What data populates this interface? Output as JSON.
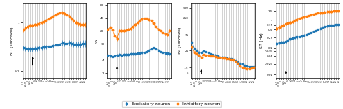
{
  "chart_data": [
    {
      "type": "line",
      "ylabel": "BD (seconds)",
      "log": "y",
      "grid": "x",
      "legend": "lower center",
      "categories": [
        "-0.5",
        "-0.25",
        "0",
        "0.25",
        "0.5",
        "1",
        "2",
        "3",
        "4",
        "5",
        "6",
        "7",
        "8",
        "9",
        "10",
        "11",
        "12",
        "13",
        "14",
        "15",
        "16",
        "17",
        "18",
        "19",
        "20",
        "21",
        "22",
        "23"
      ],
      "ylim": [
        0.07,
        2.5
      ],
      "yticks": [
        0.1,
        1
      ],
      "series": [
        {
          "name": "Excitatory neuron",
          "marker": "square",
          "line_style": "solid",
          "values": [
            0.3,
            0.29,
            0.28,
            0.28,
            0.28,
            0.29,
            0.29,
            0.3,
            0.3,
            0.31,
            0.31,
            0.32,
            0.32,
            0.33,
            0.34,
            0.35,
            0.36,
            0.38,
            0.37,
            0.37,
            0.38,
            0.37,
            0.36,
            0.36,
            0.36,
            0.36,
            0.37,
            0.37
          ],
          "errors": [
            0.03,
            0.03,
            0.03,
            0.03,
            0.03,
            0.03,
            0.03,
            0.03,
            0.03,
            0.03,
            0.03,
            0.03,
            0.03,
            0.03,
            0.03,
            0.04,
            0.04,
            0.05,
            0.05,
            0.05,
            0.05,
            0.05,
            0.05,
            0.05,
            0.05,
            0.06,
            0.06,
            0.06
          ]
        },
        {
          "name": "Inhibitory neuron",
          "marker": "circle",
          "line_style": "solid",
          "values": [
            0.7,
            0.78,
            0.82,
            0.88,
            0.88,
            0.9,
            0.92,
            0.95,
            1.0,
            1.05,
            1.1,
            1.18,
            1.25,
            1.35,
            1.45,
            1.52,
            1.58,
            1.6,
            1.55,
            1.45,
            1.35,
            1.2,
            1.1,
            1.0,
            0.95,
            0.92,
            0.92,
            0.9
          ],
          "errors": [
            0.07,
            0.07,
            0.07,
            0.07,
            0.07,
            0.07,
            0.07,
            0.07,
            0.07,
            0.08,
            0.08,
            0.09,
            0.09,
            0.1,
            0.11,
            0.12,
            0.13,
            0.14,
            0.13,
            0.12,
            0.11,
            0.1,
            0.09,
            0.09,
            0.09,
            0.09,
            0.09,
            0.09
          ]
        }
      ],
      "annotations": [
        {
          "x": "0.5",
          "y": 0.12,
          "y_end": 0.216
        }
      ]
    },
    {
      "type": "line",
      "ylabel": "SN",
      "log": "y",
      "grid": "x",
      "categories": [
        "-0.5",
        "-0.25",
        "0",
        "0.25",
        "0.5",
        "1",
        "2",
        "3",
        "4",
        "5",
        "6",
        "7",
        "8",
        "9",
        "10",
        "11",
        "12",
        "13",
        "14",
        "15",
        "16",
        "17",
        "18",
        "19",
        "20",
        "21",
        "22",
        "23"
      ],
      "ylim": [
        1.5,
        90
      ],
      "yticks": [
        2,
        4,
        10,
        20,
        40,
        80
      ],
      "series": [
        {
          "name": "Excitatory neuron",
          "marker": "square",
          "line_style": "solid",
          "values": [
            5.3,
            5.2,
            5.0,
            5.1,
            5.3,
            5.5,
            5.4,
            5.5,
            5.5,
            5.6,
            5.7,
            5.8,
            5.8,
            5.9,
            6.0,
            6.1,
            6.2,
            6.5,
            7.0,
            7.5,
            8.0,
            7.5,
            7.0,
            6.5,
            6.2,
            6.0,
            5.9,
            5.8
          ],
          "errors": [
            0.4,
            0.4,
            0.4,
            0.4,
            0.4,
            0.4,
            0.4,
            0.4,
            0.4,
            0.4,
            0.4,
            0.4,
            0.4,
            0.4,
            0.4,
            0.4,
            0.4,
            0.5,
            0.5,
            0.6,
            0.6,
            0.6,
            0.5,
            0.5,
            0.5,
            0.5,
            0.5,
            0.5
          ]
        },
        {
          "name": "Inhibitory neuron",
          "marker": "circle",
          "line_style": "solid",
          "values": [
            22.0,
            24.0,
            21.0,
            15.0,
            13.0,
            20.0,
            20.0,
            20.0,
            21.0,
            22.0,
            23.0,
            25.0,
            28.0,
            32.0,
            36.0,
            38.0,
            40.0,
            40.0,
            37.0,
            35.0,
            30.0,
            25.0,
            22.0,
            20.0,
            18.0,
            17.0,
            16.0,
            20.0
          ],
          "errors": [
            1.5,
            1.5,
            1.5,
            1.5,
            1.5,
            1.5,
            1.5,
            1.5,
            1.5,
            1.8,
            1.8,
            2.0,
            2.0,
            2.5,
            2.5,
            2.5,
            2.5,
            2.5,
            2.5,
            2.0,
            2.0,
            1.8,
            1.5,
            1.5,
            1.2,
            1.2,
            1.0,
            1.5
          ]
        }
      ],
      "annotations": [
        {
          "x": "0.5",
          "y": 1.8,
          "y_end": 3.24
        }
      ]
    },
    {
      "type": "line",
      "ylabel": "IBI (seconds)",
      "log": "y",
      "grid": "x",
      "categories": [
        "-0.5",
        "-0.25",
        "0",
        "0.25",
        "0.5",
        "1",
        "2",
        "3",
        "4",
        "5",
        "6",
        "7",
        "8",
        "9",
        "10",
        "11",
        "12",
        "13",
        "14",
        "15",
        "16",
        "17",
        "18",
        "19",
        "20",
        "21",
        "22",
        "23"
      ],
      "ylim": [
        3.5,
        700
      ],
      "yticks": [
        5,
        7.5,
        25,
        75,
        250,
        500
      ],
      "series": [
        {
          "name": "Excitatory neuron",
          "marker": "square",
          "line_style": "solid",
          "values": [
            45.0,
            28.0,
            25.0,
            22.0,
            22.0,
            24.0,
            23.0,
            22.0,
            20.0,
            19.0,
            18.0,
            17.0,
            16.0,
            16.0,
            15.5,
            15.0,
            14.5,
            14.0,
            13.5,
            12.5,
            11.0,
            10.0,
            9.5,
            9.0,
            8.5,
            8.0,
            8.0,
            8.0
          ],
          "errors": [
            3.0,
            2.0,
            2.0,
            1.8,
            1.8,
            1.8,
            1.8,
            1.8,
            1.6,
            1.5,
            1.5,
            1.2,
            1.0,
            0.9,
            0.8,
            0.8,
            0.7,
            0.7,
            0.7,
            0.6,
            0.5,
            0.5,
            0.5,
            0.4,
            0.4,
            0.4,
            0.4,
            0.4
          ]
        },
        {
          "name": "Inhibitory neuron",
          "marker": "circle",
          "line_style": "solid",
          "values": [
            32.0,
            22.0,
            20.0,
            18.0,
            16.0,
            19.0,
            18.0,
            18.0,
            17.0,
            17.0,
            16.5,
            16.0,
            15.5,
            15.0,
            15.0,
            14.5,
            14.0,
            13.5,
            13.0,
            12.0,
            10.0,
            8.5,
            7.5,
            7.2,
            7.0,
            7.0,
            7.2,
            7.5
          ],
          "errors": [
            2.5,
            1.8,
            1.8,
            1.5,
            1.5,
            1.5,
            1.5,
            1.5,
            1.2,
            1.2,
            1.0,
            0.9,
            0.9,
            0.8,
            0.8,
            0.8,
            0.7,
            0.7,
            0.6,
            0.5,
            0.4,
            0.3,
            0.25,
            0.22,
            0.21,
            0.21,
            0.21,
            0.25
          ]
        }
      ],
      "annotations": [
        {
          "x": "0.5",
          "y": 4.2,
          "y_end": 7.56
        }
      ]
    },
    {
      "type": "line",
      "ylabel": "SR (Hz)",
      "log": "y",
      "grid": "x",
      "categories": [
        "-0.5",
        "-0.25",
        "0",
        "0.25",
        "0.5",
        "1",
        "2",
        "3",
        "4",
        "5",
        "6",
        "7",
        "8",
        "9",
        "10",
        "11",
        "12",
        "13",
        "14",
        "15",
        "16",
        "17",
        "18",
        "19",
        "20",
        "21",
        "22",
        "23"
      ],
      "ylim": [
        0.007,
        5.0
      ],
      "yticks": [
        0.01,
        0.025,
        0.05,
        0.075,
        0.1,
        0.25,
        0.5,
        0.75,
        1,
        2.5
      ],
      "series": [
        {
          "name": "Excitatory neuron",
          "marker": "square",
          "line_style": "solid",
          "values": [
            0.15,
            0.16,
            0.17,
            0.17,
            0.18,
            0.2,
            0.22,
            0.24,
            0.25,
            0.26,
            0.27,
            0.28,
            0.3,
            0.32,
            0.35,
            0.38,
            0.42,
            0.45,
            0.5,
            0.55,
            0.6,
            0.65,
            0.68,
            0.72,
            0.74,
            0.75,
            0.76,
            0.77
          ],
          "errors": [
            0.02,
            0.02,
            0.02,
            0.02,
            0.02,
            0.02,
            0.02,
            0.03,
            0.03,
            0.03,
            0.03,
            0.03,
            0.03,
            0.03,
            0.04,
            0.04,
            0.04,
            0.04,
            0.04,
            0.05,
            0.05,
            0.05,
            0.06,
            0.06,
            0.06,
            0.06,
            0.06,
            0.06
          ]
        },
        {
          "name": "Inhibitory neuron",
          "marker": "circle",
          "line_style": "solid",
          "values": [
            0.55,
            0.62,
            0.68,
            0.75,
            0.82,
            0.9,
            0.95,
            1.0,
            1.1,
            1.2,
            1.3,
            1.4,
            1.5,
            1.6,
            1.7,
            1.8,
            1.9,
            2.0,
            2.1,
            2.15,
            2.2,
            2.3,
            2.35,
            2.4,
            2.45,
            2.5,
            2.55,
            2.6
          ],
          "errors": [
            0.1,
            0.1,
            0.1,
            0.1,
            0.1,
            0.1,
            0.1,
            0.12,
            0.12,
            0.14,
            0.14,
            0.14,
            0.15,
            0.15,
            0.16,
            0.16,
            0.16,
            0.18,
            0.18,
            0.2,
            0.2,
            0.22,
            0.22,
            0.24,
            0.24,
            0.24,
            0.24,
            0.24
          ]
        }
      ],
      "annotations": [
        {
          "x": "0.5",
          "y": 0.009,
          "y_end": 0.0162
        }
      ]
    }
  ]
}
